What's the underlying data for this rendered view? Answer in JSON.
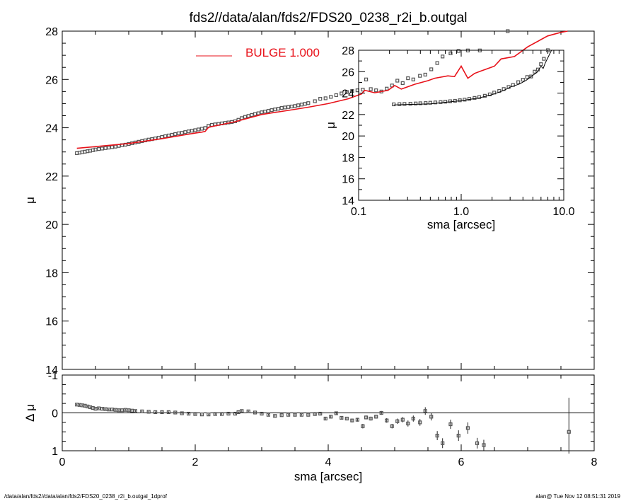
{
  "title": "fds2//data/alan/fds2/FDS20_0238_r2i_b.outgal",
  "footer_left": "/data/alan/fds2//data/alan/fds2/FDS20_0238_r2i_b.outgal_1dprof",
  "footer_right": "alan@  Tue Nov 12 08:51:31 2019",
  "colors": {
    "model": "#e8121a",
    "data": "#555555",
    "axes": "#000000"
  },
  "legend": {
    "label": "BULGE  1.000"
  },
  "chart_data": [
    {
      "id": "main",
      "type": "scatter",
      "xlabel": "sma [arcsec]",
      "ylabel": "μ",
      "xlim": [
        0,
        8
      ],
      "ylim": [
        28,
        14
      ],
      "xticks": [
        0,
        2,
        4,
        6,
        8
      ],
      "yticks": [
        14,
        16,
        18,
        20,
        22,
        24,
        26,
        28
      ],
      "series": [
        {
          "name": "data",
          "marker": "open-square",
          "x": [
            0.22,
            0.26,
            0.3,
            0.34,
            0.38,
            0.42,
            0.46,
            0.5,
            0.55,
            0.6,
            0.65,
            0.7,
            0.75,
            0.8,
            0.85,
            0.9,
            0.95,
            1.0,
            1.05,
            1.1,
            1.15,
            1.2,
            1.25,
            1.3,
            1.35,
            1.4,
            1.45,
            1.5,
            1.55,
            1.6,
            1.65,
            1.7,
            1.75,
            1.8,
            1.85,
            1.9,
            1.95,
            2.0,
            2.05,
            2.1,
            2.15,
            2.2,
            2.25,
            2.3,
            2.35,
            2.4,
            2.45,
            2.5,
            2.55,
            2.6,
            2.65,
            2.7,
            2.75,
            2.8,
            2.85,
            2.9,
            2.95,
            3.0,
            3.05,
            3.1,
            3.15,
            3.2,
            3.25,
            3.3,
            3.35,
            3.4,
            3.45,
            3.5,
            3.55,
            3.6,
            3.65,
            3.7,
            3.8,
            3.88,
            3.96,
            4.04,
            4.12,
            4.2,
            4.28,
            4.36,
            4.44,
            4.52,
            4.57,
            4.64,
            4.72,
            4.8,
            4.88,
            4.96,
            5.04,
            5.12,
            5.2,
            5.28,
            5.38,
            5.46,
            5.55,
            5.64,
            5.72,
            5.84,
            5.96,
            6.1,
            6.28,
            6.7
          ],
          "y": [
            22.95,
            22.97,
            22.99,
            23.01,
            23.03,
            23.05,
            23.07,
            23.1,
            23.12,
            23.14,
            23.16,
            23.18,
            23.2,
            23.22,
            23.25,
            23.28,
            23.3,
            23.33,
            23.36,
            23.39,
            23.42,
            23.45,
            23.48,
            23.51,
            23.53,
            23.56,
            23.59,
            23.62,
            23.65,
            23.68,
            23.71,
            23.74,
            23.77,
            23.79,
            23.82,
            23.85,
            23.88,
            23.9,
            23.93,
            23.96,
            23.99,
            24.08,
            24.12,
            24.14,
            24.16,
            24.18,
            24.2,
            24.22,
            24.24,
            24.27,
            24.33,
            24.4,
            24.45,
            24.49,
            24.53,
            24.57,
            24.6,
            24.64,
            24.67,
            24.7,
            24.73,
            24.76,
            24.79,
            24.82,
            24.84,
            24.86,
            24.88,
            24.9,
            24.93,
            24.96,
            24.99,
            25.02,
            25.1,
            25.2,
            25.22,
            25.28,
            25.35,
            25.42,
            25.48,
            25.52,
            25.55,
            25.58,
            26.0,
            25.6,
            25.55,
            25.5,
            25.62,
            25.75,
            25.95,
            25.85,
            26.05,
            26.0,
            26.15,
            26.2,
            26.42,
            26.68,
            26.95,
            27.08,
            27.18,
            27.2,
            27.2,
            28.0
          ]
        },
        {
          "name": "model",
          "type": "line",
          "x": [
            0.22,
            0.5,
            1.0,
            1.5,
            2.0,
            2.1,
            2.15,
            2.2,
            2.6,
            3.0,
            3.4,
            3.7,
            4.0,
            4.3,
            4.5,
            4.55,
            4.7,
            4.9,
            5.0,
            5.1,
            5.3,
            5.5,
            5.6,
            5.8,
            5.9,
            6.0,
            6.1,
            6.2,
            6.3,
            6.4,
            6.5,
            6.6,
            6.8,
            7.0,
            7.3,
            7.5,
            7.6
          ],
          "y": [
            23.15,
            23.22,
            23.35,
            23.55,
            23.78,
            23.82,
            23.85,
            24.02,
            24.25,
            24.55,
            24.72,
            24.85,
            25.0,
            25.2,
            25.4,
            25.55,
            25.45,
            25.55,
            25.75,
            25.6,
            25.8,
            25.95,
            26.05,
            26.15,
            26.12,
            26.55,
            26.05,
            26.25,
            26.35,
            26.45,
            26.55,
            26.85,
            26.95,
            27.35,
            27.8,
            27.95,
            28.0
          ]
        }
      ]
    },
    {
      "id": "inset",
      "type": "scatter",
      "xscale": "log",
      "xlabel": "sma [arcsec]",
      "ylabel": "μ",
      "xlim": [
        0.1,
        10.0
      ],
      "ylim": [
        28,
        14
      ],
      "xticks": [
        0.1,
        1.0,
        10.0
      ],
      "xtick_labels": [
        "0.1",
        "1.0",
        "10.0"
      ],
      "yticks": [
        14,
        16,
        18,
        20,
        22,
        24,
        26,
        28
      ],
      "series": [
        {
          "name": "data",
          "marker": "open-square",
          "x": [
            0.22,
            0.25,
            0.28,
            0.32,
            0.36,
            0.4,
            0.45,
            0.5,
            0.56,
            0.63,
            0.7,
            0.78,
            0.87,
            0.97,
            1.08,
            1.2,
            1.35,
            1.5,
            1.7,
            1.9,
            2.1,
            2.35,
            2.6,
            2.9,
            3.2,
            3.6,
            4.0,
            4.4,
            4.8,
            5.2,
            5.6,
            6.0,
            6.4,
            7.0
          ],
          "y": [
            22.95,
            22.97,
            22.99,
            23.01,
            23.03,
            23.05,
            23.07,
            23.1,
            23.13,
            23.16,
            23.2,
            23.24,
            23.28,
            23.33,
            23.39,
            23.46,
            23.55,
            23.63,
            23.75,
            23.88,
            24.05,
            24.2,
            24.38,
            24.57,
            24.76,
            25.02,
            25.25,
            25.5,
            25.55,
            26.0,
            26.2,
            26.7,
            27.2,
            28.0
          ]
        },
        {
          "name": "model",
          "type": "line",
          "x": [
            0.22,
            0.5,
            1.0,
            1.5,
            2.0,
            2.6,
            3.0,
            3.7,
            4.3,
            4.9,
            5.5,
            6.0,
            6.3,
            6.6,
            7.0,
            7.6
          ],
          "y": [
            22.9,
            23.0,
            23.3,
            23.55,
            23.85,
            24.25,
            24.55,
            24.85,
            25.2,
            25.6,
            25.95,
            26.5,
            26.3,
            26.8,
            27.3,
            28.0
          ]
        }
      ]
    },
    {
      "id": "residual",
      "type": "scatter",
      "xlabel": "sma [arcsec]",
      "ylabel": "Δ μ",
      "xlim": [
        0,
        8
      ],
      "ylim": [
        -1,
        1
      ],
      "xticks": [
        0,
        2,
        4,
        6,
        8
      ],
      "yticks": [
        -1,
        0,
        1
      ],
      "series": [
        {
          "name": "residual",
          "marker": "open-square-errorbar",
          "x": [
            0.22,
            0.26,
            0.3,
            0.34,
            0.38,
            0.42,
            0.46,
            0.5,
            0.55,
            0.6,
            0.65,
            0.7,
            0.75,
            0.8,
            0.85,
            0.9,
            0.95,
            1.0,
            1.05,
            1.1,
            1.2,
            1.3,
            1.4,
            1.5,
            1.6,
            1.7,
            1.8,
            1.9,
            2.0,
            2.1,
            2.2,
            2.3,
            2.4,
            2.5,
            2.6,
            2.65,
            2.7,
            2.8,
            2.9,
            3.0,
            3.1,
            3.2,
            3.3,
            3.4,
            3.5,
            3.6,
            3.7,
            3.8,
            3.88,
            3.96,
            4.04,
            4.12,
            4.2,
            4.28,
            4.36,
            4.44,
            4.52,
            4.57,
            4.64,
            4.72,
            4.8,
            4.88,
            4.96,
            5.04,
            5.12,
            5.2,
            5.28,
            5.38,
            5.46,
            5.55,
            5.64,
            5.72,
            5.84,
            5.96,
            6.1,
            6.24,
            6.34,
            7.62
          ],
          "y": [
            -0.22,
            -0.21,
            -0.2,
            -0.19,
            -0.17,
            -0.15,
            -0.13,
            -0.11,
            -0.12,
            -0.11,
            -0.1,
            -0.09,
            -0.09,
            -0.08,
            -0.07,
            -0.07,
            -0.08,
            -0.07,
            -0.06,
            -0.05,
            -0.04,
            -0.03,
            -0.02,
            -0.02,
            -0.02,
            -0.01,
            0.01,
            0.02,
            0.03,
            0.04,
            0.04,
            0.03,
            0.03,
            0.02,
            0.02,
            -0.02,
            -0.05,
            -0.04,
            -0.01,
            0.02,
            0.05,
            0.08,
            0.06,
            0.05,
            0.05,
            0.05,
            0.05,
            0.03,
            0.02,
            0.15,
            0.1,
            0.01,
            0.13,
            0.15,
            0.2,
            0.18,
            0.35,
            0.12,
            0.15,
            0.1,
            0.0,
            0.2,
            0.35,
            0.22,
            0.18,
            0.28,
            0.15,
            0.25,
            -0.05,
            0.1,
            0.6,
            0.8,
            0.3,
            0.6,
            0.4,
            0.8,
            0.85,
            0.5
          ],
          "err": [
            0.02,
            0.02,
            0.02,
            0.02,
            0.02,
            0.02,
            0.02,
            0.02,
            0.02,
            0.02,
            0.02,
            0.02,
            0.02,
            0.02,
            0.02,
            0.02,
            0.02,
            0.02,
            0.02,
            0.02,
            0.02,
            0.02,
            0.02,
            0.02,
            0.02,
            0.02,
            0.02,
            0.02,
            0.02,
            0.02,
            0.02,
            0.02,
            0.02,
            0.02,
            0.02,
            0.02,
            0.02,
            0.02,
            0.02,
            0.02,
            0.02,
            0.02,
            0.02,
            0.02,
            0.02,
            0.02,
            0.02,
            0.03,
            0.03,
            0.03,
            0.03,
            0.03,
            0.04,
            0.04,
            0.05,
            0.05,
            0.06,
            0.05,
            0.05,
            0.05,
            0.05,
            0.06,
            0.06,
            0.07,
            0.07,
            0.08,
            0.08,
            0.09,
            0.1,
            0.1,
            0.12,
            0.13,
            0.12,
            0.14,
            0.15,
            0.14,
            0.14,
            0.9
          ]
        }
      ]
    }
  ]
}
